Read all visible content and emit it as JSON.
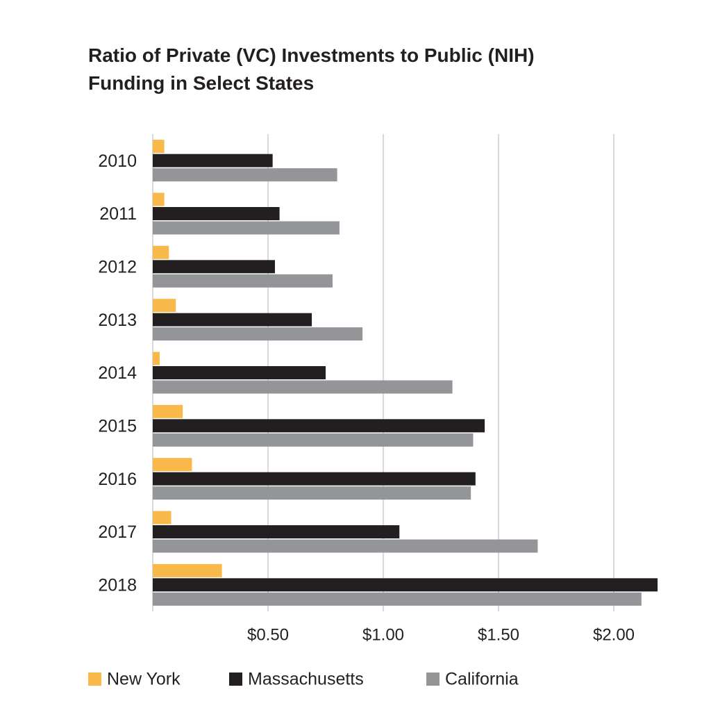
{
  "chart_data": {
    "type": "bar",
    "orientation": "horizontal",
    "title": "Ratio of Private (VC) Investments to Public (NIH) Funding in Select States",
    "categories": [
      "2010",
      "2011",
      "2012",
      "2013",
      "2014",
      "2015",
      "2016",
      "2017",
      "2018"
    ],
    "series": [
      {
        "name": "New York",
        "color": "#f9b94a",
        "values": [
          0.05,
          0.05,
          0.07,
          0.1,
          0.03,
          0.13,
          0.17,
          0.08,
          0.3
        ]
      },
      {
        "name": "Massachusetts",
        "color": "#231f20",
        "values": [
          0.52,
          0.55,
          0.53,
          0.69,
          0.75,
          1.44,
          1.4,
          1.07,
          2.19
        ]
      },
      {
        "name": "California",
        "color": "#939598",
        "values": [
          0.8,
          0.81,
          0.78,
          0.91,
          1.3,
          1.39,
          1.38,
          1.67,
          2.12
        ]
      }
    ],
    "xlim": [
      0,
      2.2
    ],
    "xticks": [
      {
        "value": 0.5,
        "label": "$0.50"
      },
      {
        "value": 1,
        "label": "$1.00"
      },
      {
        "value": 1.5,
        "label": "$1.50"
      },
      {
        "value": 2,
        "label": "$2.00"
      }
    ],
    "grid": true
  }
}
